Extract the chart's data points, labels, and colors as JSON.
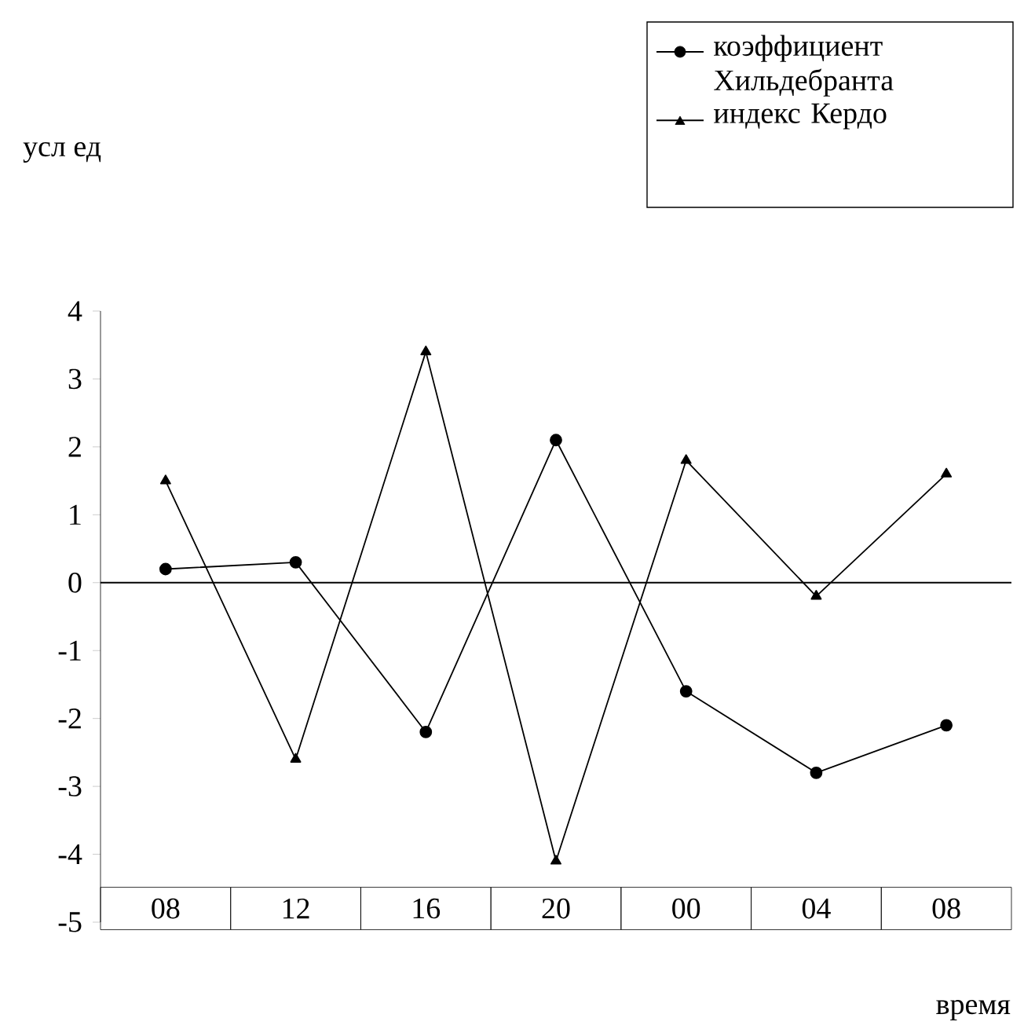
{
  "chart_data": {
    "type": "line",
    "xlabel": "время",
    "ylabel": "усл ед",
    "categories": [
      "08",
      "12",
      "16",
      "20",
      "00",
      "04",
      "08"
    ],
    "ylim": [
      -5,
      4
    ],
    "yticks": [
      -5,
      -4,
      -3,
      -2,
      -1,
      0,
      1,
      2,
      3,
      4
    ],
    "legend": "top right",
    "grid": false,
    "ref_lines": [
      {
        "axis": "y",
        "value": 0
      }
    ],
    "series": [
      {
        "name": "коэффициент Хильдебранта",
        "color": "#000000",
        "marker": "circle",
        "values": [
          0.2,
          0.3,
          -2.2,
          2.1,
          -1.6,
          -2.8,
          -2.1
        ]
      },
      {
        "name": "индекс Кердо",
        "color": "#000000",
        "marker": "triangle",
        "values": [
          1.5,
          -2.6,
          3.4,
          -4.1,
          1.8,
          -0.2,
          1.6
        ]
      }
    ]
  }
}
